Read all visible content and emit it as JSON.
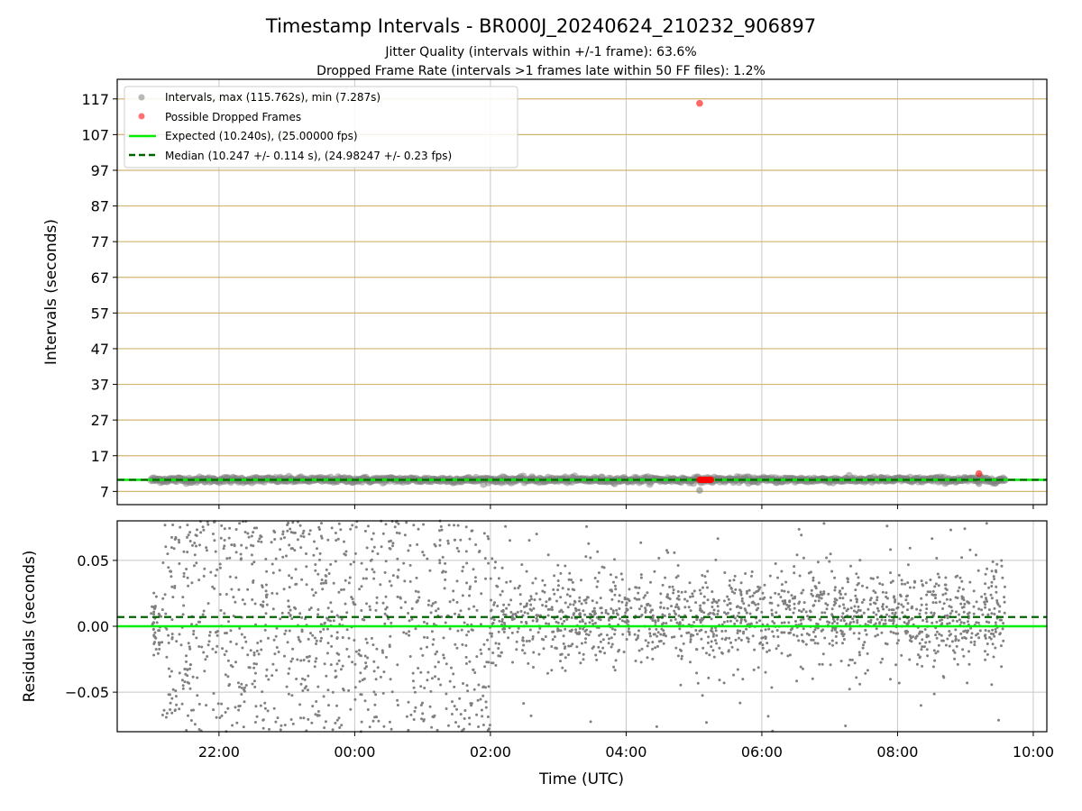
{
  "chart_data": {
    "type": "scatter",
    "title": "Timestamp Intervals - BR000J_20240624_210232_906897",
    "subtitle_jitter": "Jitter Quality (intervals within +/-1 frame): 63.6%",
    "subtitle_dropped": "Dropped Frame Rate (intervals >1 frames late within 50 FF files): 1.2%",
    "xlabel": "Time (UTC)",
    "x_ticks": [
      "22:00",
      "00:00",
      "02:00",
      "04:00",
      "06:00",
      "08:00",
      "10:00"
    ],
    "x_range_hours_from_2100": [
      -0.5,
      13.2
    ],
    "top_panel": {
      "ylabel": "Intervals (seconds)",
      "ylim": [
        3.3,
        122.5
      ],
      "y_ticks": [
        "7",
        "17",
        "27",
        "37",
        "47",
        "57",
        "67",
        "77",
        "87",
        "97",
        "107",
        "117"
      ],
      "grid": "horizontal goldenrod lines at each tick, vertical gray lines at each hour tick",
      "legend_position": "top-left",
      "legend": {
        "intervals": "Intervals, max (115.762s), min (7.287s)",
        "dropped": "Possible Dropped Frames",
        "expected": "Expected (10.240s), (25.00000 fps)",
        "median": "Median (10.247 +/- 0.114 s), (24.98247 +/- 0.23 fps)"
      },
      "expected_interval": 10.24,
      "median_interval": 10.247,
      "outliers": [
        {
          "time": "05:05",
          "interval": 115.762,
          "kind": "dropped"
        },
        {
          "time": "05:05",
          "interval": 7.287,
          "kind": "interval"
        },
        {
          "time": "09:12",
          "interval": 12.0,
          "kind": "dropped"
        },
        {
          "time": "09:12",
          "interval": 9.2,
          "kind": "interval"
        }
      ],
      "dropped_cluster": {
        "start": "05:05",
        "end": "05:15",
        "interval": 10.24
      },
      "data_span": {
        "start": "21:00",
        "end": "09:35"
      }
    },
    "bottom_panel": {
      "ylabel": "Residuals (seconds)",
      "ylim": [
        -0.08,
        0.08
      ],
      "y_ticks": [
        "0.05",
        "0.00",
        "−0.05"
      ],
      "expected_residual": 0.0,
      "median_residual": 0.007,
      "spread_early": 0.08,
      "spread_late": 0.035,
      "spread_change_time": "02:00"
    },
    "colors": {
      "intervals": "#808080",
      "dropped": "#ff0000",
      "expected": "#00ee00",
      "median": "#006400",
      "grid_h": "#d2b56e",
      "grid_v": "#c8c8c8"
    }
  }
}
